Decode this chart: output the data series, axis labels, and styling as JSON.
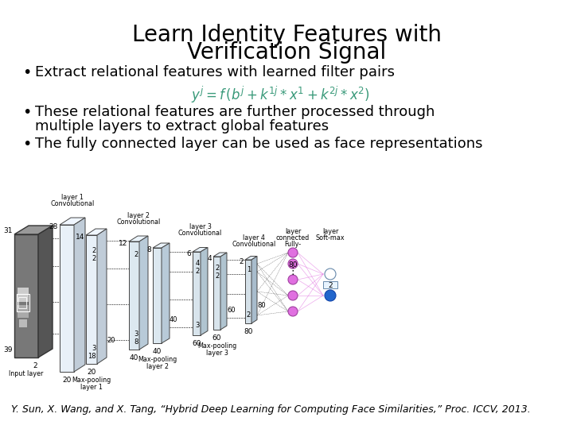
{
  "title_line1": "Learn Identity Features with",
  "title_line2": "Verification Signal",
  "bullet1": "Extract relational features with learned filter pairs",
  "formula": "$y^j = f\\,(b^j + k^{1j} * x^1 + k^{2j} * x^2)$",
  "bullet2_line1": "These relational features are further processed through",
  "bullet2_line2": "multiple layers to extract global features",
  "bullet3": "The fully connected layer can be used as face representations",
  "citation": "Y. Sun, X. Wang, and X. Tang, “Hybrid Deep Learning for Computing Face Similarities,” Proc. ICCV, 2013.",
  "bg_color": "#ffffff",
  "title_color": "#000000",
  "text_color": "#000000",
  "formula_color": "#3a9a7a",
  "title_fontsize": 20,
  "bullet_fontsize": 13,
  "formula_fontsize": 12,
  "citation_fontsize": 9
}
